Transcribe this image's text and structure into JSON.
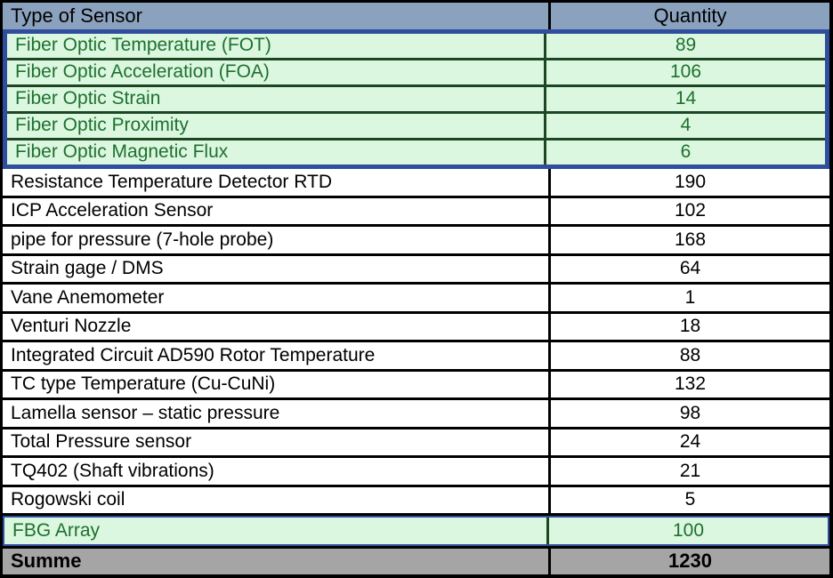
{
  "table": {
    "headers": [
      "Type of Sensor",
      "Quantity"
    ],
    "fiber_rows": [
      {
        "label": "Fiber Optic Temperature (FOT)",
        "quantity": "89"
      },
      {
        "label": "Fiber Optic Acceleration (FOA)",
        "quantity": "106"
      },
      {
        "label": "Fiber Optic Strain",
        "quantity": "14"
      },
      {
        "label": "Fiber Optic Proximity",
        "quantity": "4"
      },
      {
        "label": "Fiber Optic Magnetic Flux",
        "quantity": "6"
      }
    ],
    "standard_rows": [
      {
        "label": "Resistance Temperature Detector RTD",
        "quantity": "190"
      },
      {
        "label": "ICP Acceleration Sensor",
        "quantity": "102"
      },
      {
        "label": "pipe for pressure (7-hole probe)",
        "quantity": "168"
      },
      {
        "label": "Strain gage / DMS",
        "quantity": "64"
      },
      {
        "label": "Vane Anemometer",
        "quantity": "1"
      },
      {
        "label": "Venturi Nozzle",
        "quantity": "18"
      },
      {
        "label": "Integrated Circuit AD590 Rotor Temperature",
        "quantity": "88"
      },
      {
        "label": "TC type Temperature (Cu-CuNi)",
        "quantity": "132"
      },
      {
        "label": "Lamella sensor – static pressure",
        "quantity": "98"
      },
      {
        "label": "Total Pressure sensor",
        "quantity": "24"
      },
      {
        "label": "TQ402 (Shaft vibrations)",
        "quantity": "21"
      },
      {
        "label": "Rogowski coil",
        "quantity": "5"
      }
    ],
    "fbg_row": {
      "label": "FBG Array",
      "quantity": "100"
    },
    "footer": {
      "label": "Summe",
      "quantity": "1230"
    }
  },
  "colors": {
    "header_bg": "#8BA2BE",
    "group_border": "#2F4F9E",
    "green_bg": "#DCF7DF",
    "green_border": "#1C4722",
    "green_text": "#1E7030",
    "footer_bg": "#A5A5A5",
    "plain_border": "#000000"
  },
  "chart_data": {
    "type": "table",
    "title": "",
    "columns": [
      "Type of Sensor",
      "Quantity"
    ],
    "rows": [
      [
        "Fiber Optic Temperature (FOT)",
        89
      ],
      [
        "Fiber Optic Acceleration (FOA)",
        106
      ],
      [
        "Fiber Optic Strain",
        14
      ],
      [
        "Fiber Optic Proximity",
        4
      ],
      [
        "Fiber Optic Magnetic Flux",
        6
      ],
      [
        "Resistance Temperature Detector RTD",
        190
      ],
      [
        "ICP Acceleration Sensor",
        102
      ],
      [
        "pipe for pressure (7-hole probe)",
        168
      ],
      [
        "Strain gage / DMS",
        64
      ],
      [
        "Vane Anemometer",
        1
      ],
      [
        "Venturi Nozzle",
        18
      ],
      [
        "Integrated Circuit AD590 Rotor Temperature",
        88
      ],
      [
        "TC type Temperature (Cu-CuNi)",
        132
      ],
      [
        "Lamella sensor – static pressure",
        98
      ],
      [
        "Total Pressure sensor",
        24
      ],
      [
        "TQ402 (Shaft vibrations)",
        21
      ],
      [
        "Rogowski coil",
        5
      ],
      [
        "FBG Array",
        100
      ]
    ],
    "total_row": [
      "Summe",
      1230
    ],
    "highlighted_rows": [
      "Fiber Optic Temperature (FOT)",
      "Fiber Optic Acceleration (FOA)",
      "Fiber Optic Strain",
      "Fiber Optic Proximity",
      "Fiber Optic Magnetic Flux",
      "FBG Array"
    ],
    "layout": "fiber optic rows grouped with blue outline, green fill; FBG Array green with thin blue outline; gray bold total row"
  }
}
